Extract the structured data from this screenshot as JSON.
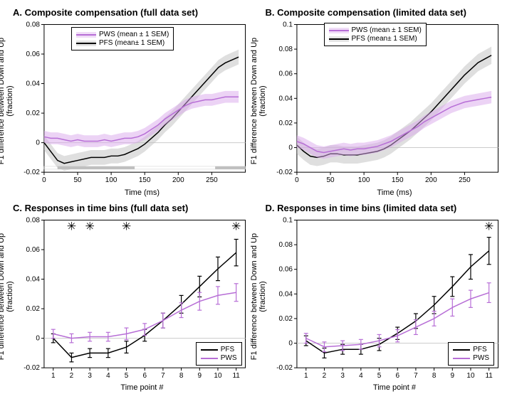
{
  "colors": {
    "pws": "#b76ed6",
    "pws_fill": "#d9a8ec",
    "pfs": "#000000",
    "pfs_fill": "#bfbfbf",
    "axis": "#000000",
    "bg": "#ffffff",
    "zero_line": "#cccccc",
    "sig_bar": "#bfbfbf"
  },
  "fonts": {
    "title_size": 13,
    "label_size": 11,
    "tick_size": 10,
    "legend_size": 10
  },
  "panelA": {
    "title": "A. Composite compensation (full data set)",
    "xlabel": "Time (ms)",
    "ylabel_main": "F1 difference between Down and Up",
    "ylabel_sub": "(fraction)",
    "xlim": [
      0,
      300
    ],
    "xticks": [
      0,
      50,
      100,
      150,
      200,
      250
    ],
    "ylim": [
      -0.02,
      0.08
    ],
    "yticks": [
      -0.02,
      0,
      0.02,
      0.04,
      0.06,
      0.08
    ],
    "legend": {
      "pws": "PWS (mean ± 1 SEM)",
      "pfs": "PFS (mean± 1 SEM)"
    },
    "pws_mean": [
      [
        0,
        0.004
      ],
      [
        10,
        0.003
      ],
      [
        20,
        0.003
      ],
      [
        30,
        0.002
      ],
      [
        40,
        0.001
      ],
      [
        50,
        0.002
      ],
      [
        60,
        0.001
      ],
      [
        70,
        0.001
      ],
      [
        80,
        0.001
      ],
      [
        90,
        0.002
      ],
      [
        100,
        0.001
      ],
      [
        110,
        0.002
      ],
      [
        120,
        0.003
      ],
      [
        130,
        0.003
      ],
      [
        140,
        0.004
      ],
      [
        150,
        0.006
      ],
      [
        160,
        0.009
      ],
      [
        170,
        0.012
      ],
      [
        180,
        0.016
      ],
      [
        190,
        0.019
      ],
      [
        200,
        0.022
      ],
      [
        210,
        0.025
      ],
      [
        220,
        0.027
      ],
      [
        230,
        0.028
      ],
      [
        240,
        0.029
      ],
      [
        250,
        0.029
      ],
      [
        260,
        0.03
      ],
      [
        270,
        0.031
      ],
      [
        280,
        0.031
      ],
      [
        290,
        0.031
      ]
    ],
    "pws_sem": 0.004,
    "pfs_mean": [
      [
        0,
        0.0
      ],
      [
        10,
        -0.006
      ],
      [
        20,
        -0.012
      ],
      [
        30,
        -0.014
      ],
      [
        40,
        -0.013
      ],
      [
        50,
        -0.012
      ],
      [
        60,
        -0.011
      ],
      [
        70,
        -0.01
      ],
      [
        80,
        -0.01
      ],
      [
        90,
        -0.01
      ],
      [
        100,
        -0.009
      ],
      [
        110,
        -0.009
      ],
      [
        120,
        -0.008
      ],
      [
        130,
        -0.006
      ],
      [
        140,
        -0.004
      ],
      [
        150,
        -0.001
      ],
      [
        160,
        0.003
      ],
      [
        170,
        0.007
      ],
      [
        180,
        0.012
      ],
      [
        190,
        0.016
      ],
      [
        200,
        0.021
      ],
      [
        210,
        0.026
      ],
      [
        220,
        0.031
      ],
      [
        230,
        0.036
      ],
      [
        240,
        0.041
      ],
      [
        250,
        0.046
      ],
      [
        260,
        0.051
      ],
      [
        270,
        0.054
      ],
      [
        280,
        0.056
      ],
      [
        290,
        0.058
      ]
    ],
    "pfs_sem": 0.005,
    "sig_bars": [
      [
        20,
        135
      ],
      [
        255,
        300
      ]
    ]
  },
  "panelB": {
    "title": "B. Composite compensation (limited data set)",
    "xlabel": "Time (ms)",
    "ylabel_main": "F1 difference between Down and Up",
    "ylabel_sub": "(fraction)",
    "xlim": [
      0,
      300
    ],
    "xticks": [
      0,
      50,
      100,
      150,
      200,
      250
    ],
    "ylim": [
      -0.02,
      0.1
    ],
    "yticks": [
      -0.02,
      0,
      0.02,
      0.04,
      0.06,
      0.08,
      0.1
    ],
    "legend": {
      "pws": "PWS (mean ± 1 SEM)",
      "pfs": "PFS (mean± 1 SEM)"
    },
    "pws_mean": [
      [
        0,
        0.005
      ],
      [
        10,
        0.003
      ],
      [
        20,
        0.0
      ],
      [
        30,
        -0.003
      ],
      [
        40,
        -0.004
      ],
      [
        50,
        -0.003
      ],
      [
        60,
        -0.002
      ],
      [
        70,
        -0.001
      ],
      [
        80,
        -0.002
      ],
      [
        90,
        -0.001
      ],
      [
        100,
        -0.001
      ],
      [
        110,
        0.0
      ],
      [
        120,
        0.001
      ],
      [
        130,
        0.003
      ],
      [
        140,
        0.005
      ],
      [
        150,
        0.008
      ],
      [
        160,
        0.011
      ],
      [
        170,
        0.014
      ],
      [
        180,
        0.017
      ],
      [
        190,
        0.021
      ],
      [
        200,
        0.024
      ],
      [
        210,
        0.027
      ],
      [
        220,
        0.03
      ],
      [
        230,
        0.033
      ],
      [
        240,
        0.035
      ],
      [
        250,
        0.037
      ],
      [
        260,
        0.038
      ],
      [
        270,
        0.039
      ],
      [
        280,
        0.04
      ],
      [
        290,
        0.041
      ]
    ],
    "pws_sem": 0.005,
    "pfs_mean": [
      [
        0,
        0.002
      ],
      [
        10,
        -0.003
      ],
      [
        20,
        -0.007
      ],
      [
        30,
        -0.008
      ],
      [
        40,
        -0.007
      ],
      [
        50,
        -0.005
      ],
      [
        60,
        -0.005
      ],
      [
        70,
        -0.006
      ],
      [
        80,
        -0.006
      ],
      [
        90,
        -0.006
      ],
      [
        100,
        -0.005
      ],
      [
        110,
        -0.004
      ],
      [
        120,
        -0.003
      ],
      [
        130,
        -0.001
      ],
      [
        140,
        0.002
      ],
      [
        150,
        0.006
      ],
      [
        160,
        0.01
      ],
      [
        170,
        0.014
      ],
      [
        180,
        0.019
      ],
      [
        190,
        0.024
      ],
      [
        200,
        0.029
      ],
      [
        210,
        0.035
      ],
      [
        220,
        0.041
      ],
      [
        230,
        0.047
      ],
      [
        240,
        0.053
      ],
      [
        250,
        0.059
      ],
      [
        260,
        0.064
      ],
      [
        270,
        0.069
      ],
      [
        280,
        0.072
      ],
      [
        290,
        0.075
      ]
    ],
    "pfs_sem": 0.007,
    "sig_bars": []
  },
  "panelC": {
    "title": "C. Responses in time bins (full data set)",
    "xlabel": "Time point #",
    "ylabel_main": "F1 difference between Down and Up",
    "ylabel_sub": "(fraction)",
    "xlim": [
      0.5,
      11.5
    ],
    "xticks": [
      1,
      2,
      3,
      4,
      5,
      6,
      7,
      8,
      9,
      10,
      11
    ],
    "ylim": [
      -0.02,
      0.08
    ],
    "yticks": [
      -0.02,
      0,
      0.02,
      0.04,
      0.06,
      0.08
    ],
    "legend": {
      "pfs": "PFS",
      "pws": "PWS"
    },
    "pfs": {
      "x": [
        1,
        2,
        3,
        4,
        5,
        6,
        7,
        8,
        9,
        10,
        11
      ],
      "y": [
        0.0,
        -0.013,
        -0.01,
        -0.01,
        -0.006,
        0.002,
        0.012,
        0.023,
        0.035,
        0.047,
        0.058
      ],
      "err": [
        0.003,
        0.003,
        0.003,
        0.003,
        0.004,
        0.004,
        0.005,
        0.006,
        0.007,
        0.008,
        0.009
      ]
    },
    "pws": {
      "x": [
        1,
        2,
        3,
        4,
        5,
        6,
        7,
        8,
        9,
        10,
        11
      ],
      "y": [
        0.003,
        0.0,
        0.001,
        0.001,
        0.003,
        0.006,
        0.012,
        0.019,
        0.025,
        0.029,
        0.031
      ],
      "err": [
        0.003,
        0.003,
        0.003,
        0.003,
        0.004,
        0.004,
        0.005,
        0.005,
        0.006,
        0.006,
        0.006
      ]
    },
    "stars": [
      2,
      3,
      5,
      11
    ]
  },
  "panelD": {
    "title": "D. Responses in time bins  (limited data set)",
    "xlabel": "Time point #",
    "ylabel_main": "F1 difference between Down and Up",
    "ylabel_sub": "(fraction)",
    "xlim": [
      0.5,
      11.5
    ],
    "xticks": [
      1,
      2,
      3,
      4,
      5,
      6,
      7,
      8,
      9,
      10,
      11
    ],
    "ylim": [
      -0.02,
      0.1
    ],
    "yticks": [
      -0.02,
      0,
      0.02,
      0.04,
      0.06,
      0.08,
      0.1
    ],
    "legend": {
      "pfs": "PFS",
      "pws": "PWS"
    },
    "pfs": {
      "x": [
        1,
        2,
        3,
        4,
        5,
        6,
        7,
        8,
        9,
        10,
        11
      ],
      "y": [
        0.002,
        -0.008,
        -0.005,
        -0.005,
        -0.001,
        0.008,
        0.018,
        0.031,
        0.046,
        0.062,
        0.075
      ],
      "err": [
        0.004,
        0.004,
        0.004,
        0.004,
        0.005,
        0.005,
        0.006,
        0.007,
        0.008,
        0.01,
        0.011
      ]
    },
    "pws": {
      "x": [
        1,
        2,
        3,
        4,
        5,
        6,
        7,
        8,
        9,
        10,
        11
      ],
      "y": [
        0.004,
        -0.003,
        -0.002,
        -0.001,
        0.002,
        0.006,
        0.013,
        0.02,
        0.029,
        0.036,
        0.041
      ],
      "err": [
        0.004,
        0.004,
        0.004,
        0.004,
        0.005,
        0.005,
        0.006,
        0.006,
        0.007,
        0.007,
        0.008
      ]
    },
    "stars": [
      11
    ]
  }
}
